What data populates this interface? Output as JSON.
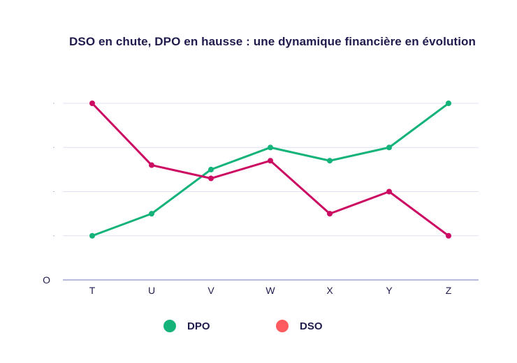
{
  "chart_data": {
    "type": "line",
    "title": "DSO en chute, DPO en hausse : une dynamique financière en évolution",
    "categories": [
      "T",
      "U",
      "V",
      "W",
      "X",
      "Y",
      "Z"
    ],
    "series": [
      {
        "name": "DPO",
        "color": "#14b37a",
        "values": [
          1,
          1.5,
          2.5,
          3,
          2.7,
          3,
          4
        ]
      },
      {
        "name": "DSO",
        "color": "#cc0b63",
        "values": [
          4,
          2.6,
          2.3,
          2.7,
          1.5,
          2,
          1
        ]
      }
    ],
    "ylim": [
      0,
      4
    ],
    "y_ticks": [
      0,
      1,
      2,
      3,
      4
    ],
    "y_tick_labels_visible": [
      "O"
    ],
    "legend": {
      "placement": "bottom",
      "items": [
        {
          "label": "DPO",
          "color": "#14b37a"
        },
        {
          "label": "DSO",
          "color": "#ff5a5f"
        }
      ]
    },
    "grid": true
  }
}
